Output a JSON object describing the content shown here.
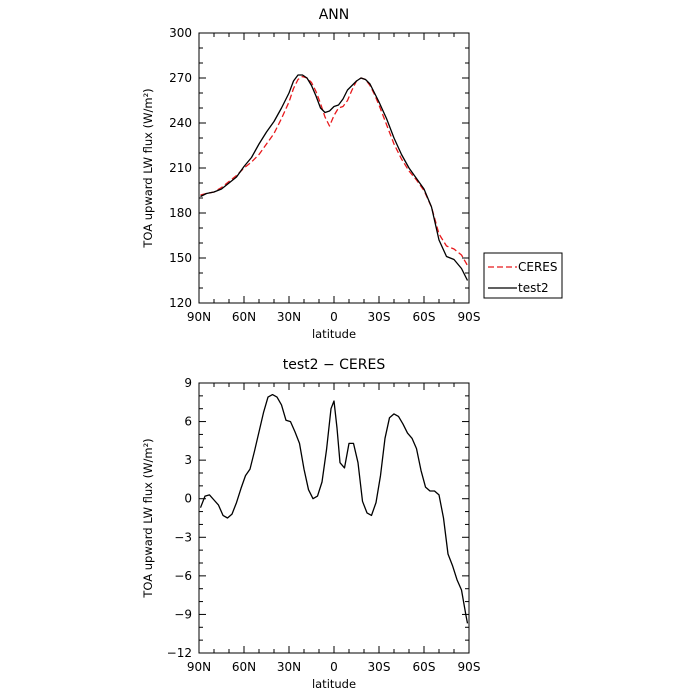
{
  "chart_data": [
    {
      "type": "line",
      "title": "ANN",
      "xlabel": "latitude",
      "ylabel": "TOA upward LW flux (W/m²)",
      "xlim": [
        90,
        -90
      ],
      "ylim": [
        120,
        300
      ],
      "xticks": [
        90,
        60,
        30,
        0,
        -30,
        -60,
        -90
      ],
      "xtick_labels": [
        "90N",
        "60N",
        "30N",
        "0",
        "30S",
        "60S",
        "90S"
      ],
      "yticks": [
        120,
        150,
        180,
        210,
        240,
        270,
        300
      ],
      "ytick_labels": [
        "120",
        "150",
        "180",
        "210",
        "240",
        "270",
        "300"
      ],
      "legend": "outside-right",
      "series": [
        {
          "name": "CERES",
          "color": "#e8191c",
          "dash": "dashed",
          "x": [
            89,
            85,
            80,
            75,
            70,
            65,
            60,
            55,
            50,
            45,
            40,
            35,
            30,
            27,
            24,
            21,
            18,
            15,
            12,
            9,
            6,
            3,
            0,
            -3,
            -6,
            -9,
            -12,
            -15,
            -18,
            -21,
            -24,
            -27,
            -30,
            -35,
            -40,
            -45,
            -50,
            -55,
            -60,
            -65,
            -70,
            -75,
            -80,
            -85,
            -89
          ],
          "values": [
            192,
            193,
            194,
            197,
            201,
            205,
            210,
            214,
            219,
            226,
            233,
            243,
            254,
            263,
            269,
            271,
            270,
            267,
            261,
            253,
            244,
            238,
            245,
            250,
            251,
            255,
            262,
            268,
            270,
            269,
            265,
            259,
            252,
            239,
            226,
            216,
            208,
            202,
            195,
            184,
            166,
            158,
            156,
            152,
            145
          ]
        },
        {
          "name": "test2",
          "color": "#000000",
          "dash": "solid",
          "x": [
            89,
            85,
            80,
            75,
            70,
            65,
            60,
            55,
            50,
            45,
            40,
            35,
            30,
            27,
            24,
            21,
            18,
            15,
            12,
            9,
            6,
            3,
            0,
            -3,
            -6,
            -9,
            -12,
            -15,
            -18,
            -21,
            -24,
            -27,
            -30,
            -35,
            -40,
            -45,
            -50,
            -55,
            -60,
            -65,
            -70,
            -75,
            -80,
            -85,
            -89
          ],
          "values": [
            191,
            193,
            194,
            196,
            200,
            204,
            211,
            217,
            226,
            234,
            241,
            250,
            260,
            268,
            272,
            272,
            270,
            265,
            258,
            250,
            247,
            248,
            251,
            252,
            256,
            262,
            265,
            268,
            270,
            269,
            266,
            260,
            254,
            243,
            230,
            219,
            210,
            203,
            196,
            184,
            162,
            151,
            149,
            143,
            135
          ]
        }
      ]
    },
    {
      "type": "line",
      "title": "test2 − CERES",
      "xlabel": "latitude",
      "ylabel": "TOA upward LW flux (W/m²)",
      "xlim": [
        90,
        -90
      ],
      "ylim": [
        -12,
        9
      ],
      "xticks": [
        90,
        60,
        30,
        0,
        -30,
        -60,
        -90
      ],
      "xtick_labels": [
        "90N",
        "60N",
        "30N",
        "0",
        "30S",
        "60S",
        "90S"
      ],
      "yticks": [
        -12,
        -9,
        -6,
        -3,
        0,
        3,
        6,
        9
      ],
      "ytick_labels": [
        "−12",
        "−9",
        "−6",
        "−3",
        "0",
        "3",
        "6",
        "9"
      ],
      "series": [
        {
          "color": "#000000",
          "dash": "solid",
          "x": [
            89,
            86,
            83,
            80,
            77,
            74,
            71,
            68,
            65,
            62,
            59,
            56,
            53,
            50,
            47,
            44,
            41,
            38,
            35,
            32,
            29,
            26,
            23,
            20,
            17,
            14,
            11,
            8,
            5,
            2,
            0,
            -2,
            -4,
            -7,
            -10,
            -13,
            -16,
            -19,
            -22,
            -25,
            -28,
            -31,
            -34,
            -37,
            -40,
            -43,
            -46,
            -49,
            -52,
            -55,
            -58,
            -61,
            -64,
            -67,
            -70,
            -73,
            -76,
            -79,
            -82,
            -85,
            -88,
            -89
          ],
          "values": [
            -0.7,
            0.2,
            0.3,
            -0.1,
            -0.5,
            -1.3,
            -1.5,
            -1.2,
            -0.3,
            0.8,
            1.8,
            2.3,
            3.7,
            5.2,
            6.7,
            7.9,
            8.1,
            7.9,
            7.3,
            6.1,
            6.0,
            5.2,
            4.3,
            2.3,
            0.7,
            0.0,
            0.2,
            1.3,
            3.8,
            7.0,
            7.6,
            5.5,
            2.8,
            2.4,
            4.3,
            4.3,
            2.8,
            -0.2,
            -1.1,
            -1.3,
            -0.3,
            1.8,
            4.7,
            6.3,
            6.6,
            6.4,
            5.8,
            5.1,
            4.7,
            3.9,
            2.2,
            0.9,
            0.6,
            0.6,
            0.3,
            -1.5,
            -4.3,
            -5.2,
            -6.3,
            -7.1,
            -9.1,
            -9.7
          ]
        }
      ]
    }
  ]
}
